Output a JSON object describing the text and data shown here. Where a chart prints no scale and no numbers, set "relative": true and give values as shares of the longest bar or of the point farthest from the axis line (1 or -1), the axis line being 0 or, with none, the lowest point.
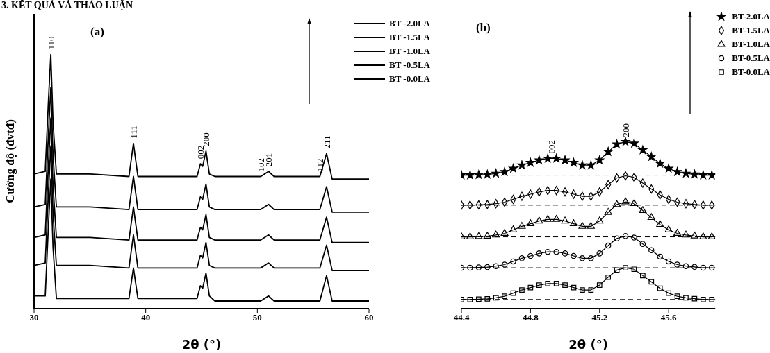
{
  "chart_data": [
    {
      "type": "line",
      "title": "(a)",
      "xlabel": "2θ (°)",
      "ylabel": "Cường độ (đvtđ)",
      "relative": true,
      "tick_labels": "x",
      "legend": "top right",
      "grid": false,
      "marker": "none",
      "line_style": "solid",
      "x": [
        30,
        31,
        31.3,
        31.5,
        31.7,
        32,
        35,
        38.5,
        38.9,
        39.3,
        42,
        44.6,
        44.9,
        45.1,
        45.4,
        45.7,
        46.2,
        50.3,
        51,
        51.5,
        55.6,
        56.2,
        56.7,
        60
      ],
      "xlim": [
        30,
        60
      ],
      "xticks": [
        30,
        40,
        50,
        60
      ],
      "series": [
        {
          "name": "BT -2.0LA",
          "color": "#000000",
          "values": [
            0.53,
            0.54,
            0.83,
            1.0,
            0.73,
            0.53,
            0.53,
            0.52,
            0.65,
            0.52,
            0.52,
            0.52,
            0.57,
            0.56,
            0.62,
            0.53,
            0.52,
            0.52,
            0.54,
            0.52,
            0.52,
            0.61,
            0.51,
            0.51
          ]
        },
        {
          "name": "BT -1.5LA",
          "color": "#000000",
          "values": [
            0.4,
            0.41,
            0.7,
            0.87,
            0.6,
            0.4,
            0.4,
            0.39,
            0.52,
            0.39,
            0.39,
            0.39,
            0.44,
            0.43,
            0.49,
            0.4,
            0.39,
            0.39,
            0.41,
            0.39,
            0.39,
            0.48,
            0.38,
            0.38
          ]
        },
        {
          "name": "BT -1.0LA",
          "color": "#000000",
          "values": [
            0.28,
            0.29,
            0.58,
            0.75,
            0.48,
            0.28,
            0.28,
            0.27,
            0.4,
            0.27,
            0.27,
            0.27,
            0.32,
            0.31,
            0.37,
            0.28,
            0.27,
            0.27,
            0.29,
            0.27,
            0.27,
            0.36,
            0.26,
            0.26
          ]
        },
        {
          "name": "BT -0.5LA",
          "color": "#000000",
          "values": [
            0.17,
            0.18,
            0.47,
            0.64,
            0.37,
            0.17,
            0.17,
            0.16,
            0.29,
            0.16,
            0.16,
            0.16,
            0.21,
            0.2,
            0.26,
            0.17,
            0.16,
            0.16,
            0.18,
            0.16,
            0.16,
            0.25,
            0.15,
            0.15
          ]
        },
        {
          "name": "BT -0.0LA",
          "color": "#000000",
          "values": [
            0.05,
            0.05,
            0.34,
            0.51,
            0.24,
            0.04,
            0.04,
            0.04,
            0.16,
            0.04,
            0.04,
            0.04,
            0.09,
            0.08,
            0.14,
            0.05,
            0.03,
            0.03,
            0.05,
            0.03,
            0.03,
            0.13,
            0.03,
            0.03
          ]
        }
      ],
      "annotations": [
        "3. KẾT QUẢ VÀ THẢO LUẬN",
        {
          "text": "110",
          "x": 31.5,
          "y": 1.0
        },
        {
          "text": "111",
          "x": 38.9,
          "y": 0.65
        },
        {
          "text": "002",
          "x": 44.9,
          "y": 0.57
        },
        {
          "text": "200",
          "x": 45.4,
          "y": 0.62
        },
        {
          "text": "102",
          "x": 50.3,
          "y": 0.52
        },
        {
          "text": "201",
          "x": 51,
          "y": 0.54
        },
        {
          "text": "112",
          "x": 55.6,
          "y": 0.52
        },
        {
          "text": "211",
          "x": 56.2,
          "y": 0.61
        }
      ]
    },
    {
      "type": "line",
      "title": "(b)",
      "xlabel": "2θ (°)",
      "relative": true,
      "tick_labels": "x",
      "legend": "top right",
      "grid": false,
      "line_style": "solid",
      "x": [
        44.4,
        44.45,
        44.5,
        44.55,
        44.6,
        44.65,
        44.7,
        44.75,
        44.8,
        44.85,
        44.9,
        44.95,
        45.0,
        45.05,
        45.1,
        45.15,
        45.2,
        45.25,
        45.3,
        45.35,
        45.4,
        45.45,
        45.5,
        45.55,
        45.6,
        45.65,
        45.7,
        45.75,
        45.8,
        45.85
      ],
      "xlim": [
        44.4,
        45.87
      ],
      "xticks": [
        44.4,
        44.8,
        45.2,
        45.6
      ],
      "series": [
        {
          "name": "BT-2.0LA",
          "color": "#000000",
          "marker": "star",
          "values": [
            0.8,
            0.8,
            0.802,
            0.804,
            0.81,
            0.82,
            0.84,
            0.86,
            0.875,
            0.89,
            0.9,
            0.9,
            0.89,
            0.875,
            0.86,
            0.86,
            0.89,
            0.94,
            0.985,
            1.0,
            0.99,
            0.95,
            0.91,
            0.87,
            0.84,
            0.82,
            0.81,
            0.805,
            0.8,
            0.8
          ]
        },
        {
          "name": "BT-1.5LA",
          "color": "#000000",
          "marker": "diamond",
          "values": [
            0.62,
            0.62,
            0.622,
            0.624,
            0.629,
            0.638,
            0.655,
            0.673,
            0.686,
            0.699,
            0.708,
            0.708,
            0.699,
            0.686,
            0.673,
            0.673,
            0.699,
            0.743,
            0.783,
            0.796,
            0.787,
            0.752,
            0.717,
            0.682,
            0.655,
            0.638,
            0.629,
            0.624,
            0.62,
            0.62
          ]
        },
        {
          "name": "BT-1.0LA",
          "color": "#000000",
          "marker": "triangle",
          "values": [
            0.43,
            0.43,
            0.432,
            0.434,
            0.441,
            0.451,
            0.472,
            0.493,
            0.509,
            0.525,
            0.535,
            0.535,
            0.525,
            0.509,
            0.493,
            0.493,
            0.525,
            0.577,
            0.624,
            0.64,
            0.63,
            0.588,
            0.546,
            0.504,
            0.472,
            0.451,
            0.441,
            0.435,
            0.43,
            0.43
          ]
        },
        {
          "name": "BT-0.5LA",
          "color": "#000000",
          "marker": "circle",
          "values": [
            0.245,
            0.245,
            0.247,
            0.249,
            0.255,
            0.264,
            0.283,
            0.302,
            0.316,
            0.331,
            0.34,
            0.34,
            0.331,
            0.316,
            0.302,
            0.302,
            0.331,
            0.378,
            0.421,
            0.435,
            0.426,
            0.388,
            0.35,
            0.312,
            0.283,
            0.264,
            0.255,
            0.25,
            0.245,
            0.245
          ]
        },
        {
          "name": "BT-0.0LA",
          "color": "#000000",
          "marker": "square",
          "values": [
            0.055,
            0.055,
            0.057,
            0.059,
            0.065,
            0.074,
            0.093,
            0.112,
            0.126,
            0.141,
            0.15,
            0.15,
            0.141,
            0.126,
            0.112,
            0.112,
            0.141,
            0.188,
            0.231,
            0.245,
            0.236,
            0.198,
            0.16,
            0.122,
            0.093,
            0.074,
            0.065,
            0.06,
            0.055,
            0.055
          ]
        }
      ],
      "ref_lines": [
        {
          "axis": "y",
          "value": 0.8,
          "color": "#000000",
          "line_style": "dashed"
        },
        {
          "axis": "y",
          "value": 0.62,
          "color": "#000000",
          "line_style": "dashed"
        },
        {
          "axis": "y",
          "value": 0.43,
          "color": "#000000",
          "line_style": "dashed"
        },
        {
          "axis": "y",
          "value": 0.245,
          "color": "#000000",
          "line_style": "dashed"
        },
        {
          "axis": "y",
          "value": 0.055,
          "color": "#000000",
          "line_style": "dashed"
        }
      ],
      "annotations": [
        {
          "text": "002",
          "x": 44.92,
          "y": 0.9
        },
        {
          "text": "200",
          "x": 45.35,
          "y": 1.0
        }
      ]
    }
  ]
}
